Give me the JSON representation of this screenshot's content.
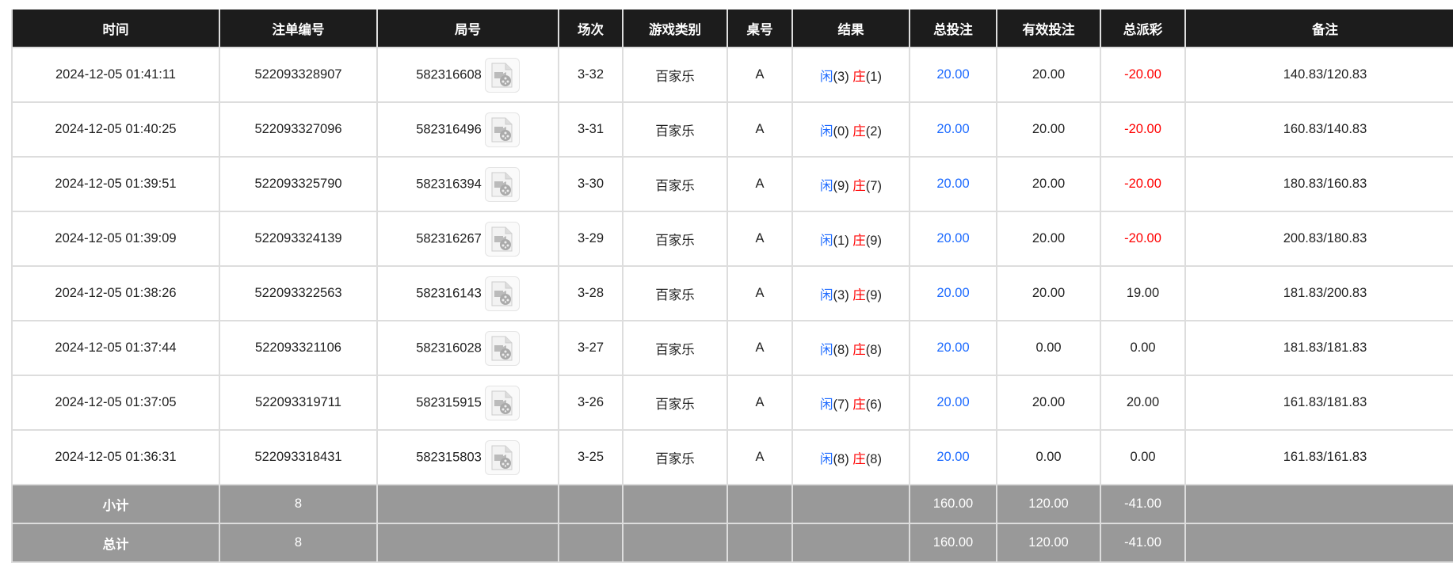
{
  "columns": [
    "时间",
    "注单编号",
    "局号",
    "场次",
    "游戏类别",
    "桌号",
    "结果",
    "总投注",
    "有效投注",
    "总派彩",
    "备注"
  ],
  "rows": [
    {
      "time": "2024-12-05 01:41:11",
      "bet_id": "522093328907",
      "round": "582316608",
      "session": "3-32",
      "game": "百家乐",
      "table": "A",
      "player_label": "闲",
      "player": "(3)",
      "banker_label": "庄",
      "banker": "(1)",
      "total_bet": "20.00",
      "valid_bet": "20.00",
      "payout": "-20.00",
      "payout_negative": true,
      "note": "140.83/120.83"
    },
    {
      "time": "2024-12-05 01:40:25",
      "bet_id": "522093327096",
      "round": "582316496",
      "session": "3-31",
      "game": "百家乐",
      "table": "A",
      "player_label": "闲",
      "player": "(0)",
      "banker_label": "庄",
      "banker": "(2)",
      "total_bet": "20.00",
      "valid_bet": "20.00",
      "payout": "-20.00",
      "payout_negative": true,
      "note": "160.83/140.83"
    },
    {
      "time": "2024-12-05 01:39:51",
      "bet_id": "522093325790",
      "round": "582316394",
      "session": "3-30",
      "game": "百家乐",
      "table": "A",
      "player_label": "闲",
      "player": "(9)",
      "banker_label": "庄",
      "banker": "(7)",
      "total_bet": "20.00",
      "valid_bet": "20.00",
      "payout": "-20.00",
      "payout_negative": true,
      "note": "180.83/160.83"
    },
    {
      "time": "2024-12-05 01:39:09",
      "bet_id": "522093324139",
      "round": "582316267",
      "session": "3-29",
      "game": "百家乐",
      "table": "A",
      "player_label": "闲",
      "player": "(1)",
      "banker_label": "庄",
      "banker": "(9)",
      "total_bet": "20.00",
      "valid_bet": "20.00",
      "payout": "-20.00",
      "payout_negative": true,
      "note": "200.83/180.83"
    },
    {
      "time": "2024-12-05 01:38:26",
      "bet_id": "522093322563",
      "round": "582316143",
      "session": "3-28",
      "game": "百家乐",
      "table": "A",
      "player_label": "闲",
      "player": "(3)",
      "banker_label": "庄",
      "banker": "(9)",
      "total_bet": "20.00",
      "valid_bet": "20.00",
      "payout": "19.00",
      "payout_negative": false,
      "note": "181.83/200.83"
    },
    {
      "time": "2024-12-05 01:37:44",
      "bet_id": "522093321106",
      "round": "582316028",
      "session": "3-27",
      "game": "百家乐",
      "table": "A",
      "player_label": "闲",
      "player": "(8)",
      "banker_label": "庄",
      "banker": "(8)",
      "total_bet": "20.00",
      "valid_bet": "0.00",
      "payout": "0.00",
      "payout_negative": false,
      "note": "181.83/181.83"
    },
    {
      "time": "2024-12-05 01:37:05",
      "bet_id": "522093319711",
      "round": "582315915",
      "session": "3-26",
      "game": "百家乐",
      "table": "A",
      "player_label": "闲",
      "player": "(7)",
      "banker_label": "庄",
      "banker": "(6)",
      "total_bet": "20.00",
      "valid_bet": "20.00",
      "payout": "20.00",
      "payout_negative": false,
      "note": "161.83/181.83"
    },
    {
      "time": "2024-12-05 01:36:31",
      "bet_id": "522093318431",
      "round": "582315803",
      "session": "3-25",
      "game": "百家乐",
      "table": "A",
      "player_label": "闲",
      "player": "(8)",
      "banker_label": "庄",
      "banker": "(8)",
      "total_bet": "20.00",
      "valid_bet": "0.00",
      "payout": "0.00",
      "payout_negative": false,
      "note": "161.83/161.83"
    }
  ],
  "summary": [
    {
      "label": "小计",
      "count": "8",
      "total_bet": "160.00",
      "valid_bet": "120.00",
      "payout": "-41.00"
    },
    {
      "label": "总计",
      "count": "8",
      "total_bet": "160.00",
      "valid_bet": "120.00",
      "payout": "-41.00"
    }
  ],
  "icons": {
    "replay": "video-file-icon"
  },
  "colors": {
    "header_bg": "#1c1c1c",
    "player": "#1e6bff",
    "banker": "#ff0000",
    "negative": "#ff0000",
    "summary_bg": "#999999"
  }
}
